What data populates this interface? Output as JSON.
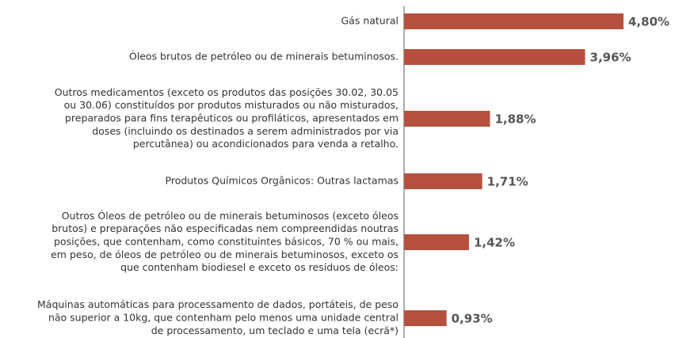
{
  "chart_data": {
    "type": "bar",
    "orientation": "horizontal",
    "color": "#b5503f",
    "categories": [
      [
        "Gás natural"
      ],
      [
        "Óleos brutos de petróleo ou de minerais betuminosos."
      ],
      [
        "Outros medicamentos (exceto os produtos das posições 30.02, 30.05",
        "ou 30.06) constituídos por produtos misturados ou não misturados,",
        "preparados para fins terapêuticos ou profiláticos, apresentados em",
        "doses (incluindo os destinados a serem administrados por via",
        "percutânea) ou acondicionados para venda a retalho."
      ],
      [
        "Produtos Químicos Orgânicos: Outras lactamas"
      ],
      [
        "Outros Óleos de petróleo ou de minerais betuminosos (exceto óleos",
        "brutos) e preparações não especificadas nem compreendidas noutras",
        "posições, que contenham, como constituintes básicos, 70 % ou mais,",
        "em peso, de óleos de petróleo ou de minerais betuminosos, exceto os",
        "que contenham biodiesel e exceto os resíduos de óleos:"
      ],
      [
        "Máquinas automáticas para processamento de dados, portáteis, de peso",
        "não superior a 10kg, que contenham pelo menos uma unidade central",
        "de processamento, um teclado e uma tela (ecrã*)"
      ]
    ],
    "values": [
      4.8,
      3.96,
      1.88,
      1.71,
      1.42,
      0.93
    ],
    "value_labels": [
      "4,80%",
      "3,96%",
      "1,88%",
      "1,71%",
      "1,42%",
      "0,93%"
    ]
  }
}
